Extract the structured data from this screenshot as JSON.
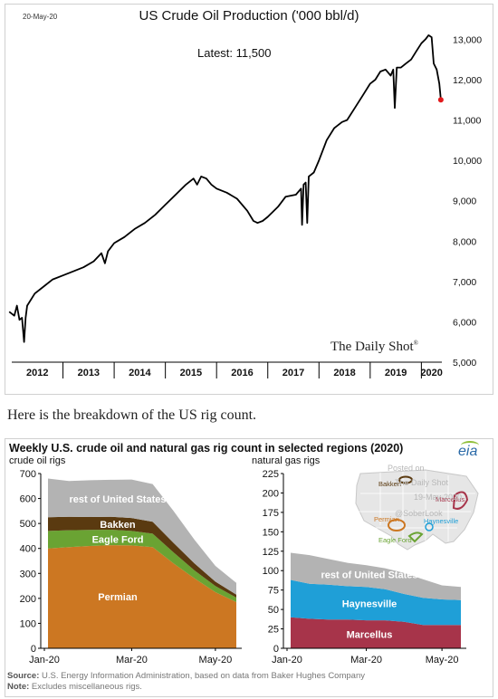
{
  "header": {
    "date": "20-May-20",
    "brand": "The Daily Shot",
    "brand_mark": "®"
  },
  "caption": "Here is the breakdown of the US rig count.",
  "chart_data": [
    {
      "type": "line",
      "title": "US Crude Oil Production  ('000 bbl/d)",
      "annotation": "Latest:  11,500",
      "x_unit": "year",
      "xlim": [
        2012,
        2020.4
      ],
      "ylim": [
        5000,
        13300
      ],
      "yticks": [
        5000,
        6000,
        7000,
        8000,
        9000,
        10000,
        11000,
        12000,
        13000
      ],
      "ytick_labels": [
        "5,000",
        "6,000",
        "7,000",
        "8,000",
        "9,000",
        "10,000",
        "11,000",
        "12,000",
        "13,000"
      ],
      "xtick_labels": [
        "2012",
        "2013",
        "2014",
        "2015",
        "2016",
        "2017",
        "2018",
        "2019",
        "2020"
      ],
      "grid": false,
      "color": "#000000",
      "latest_point": {
        "x": 2020.38,
        "y": 11500,
        "color": "#e31a1c"
      },
      "points": [
        [
          2011.95,
          6250
        ],
        [
          2012.05,
          6150
        ],
        [
          2012.1,
          6400
        ],
        [
          2012.15,
          6050
        ],
        [
          2012.2,
          6100
        ],
        [
          2012.24,
          5500
        ],
        [
          2012.27,
          6100
        ],
        [
          2012.3,
          6400
        ],
        [
          2012.45,
          6700
        ],
        [
          2012.6,
          6850
        ],
        [
          2012.8,
          7050
        ],
        [
          2013.0,
          7150
        ],
        [
          2013.2,
          7250
        ],
        [
          2013.4,
          7350
        ],
        [
          2013.6,
          7500
        ],
        [
          2013.75,
          7700
        ],
        [
          2013.82,
          7450
        ],
        [
          2013.88,
          7750
        ],
        [
          2014.0,
          7950
        ],
        [
          2014.2,
          8100
        ],
        [
          2014.4,
          8300
        ],
        [
          2014.6,
          8450
        ],
        [
          2014.8,
          8650
        ],
        [
          2015.0,
          8900
        ],
        [
          2015.2,
          9150
        ],
        [
          2015.4,
          9400
        ],
        [
          2015.55,
          9550
        ],
        [
          2015.62,
          9400
        ],
        [
          2015.7,
          9600
        ],
        [
          2015.8,
          9550
        ],
        [
          2015.9,
          9400
        ],
        [
          2016.0,
          9300
        ],
        [
          2016.2,
          9200
        ],
        [
          2016.4,
          9050
        ],
        [
          2016.6,
          8750
        ],
        [
          2016.72,
          8500
        ],
        [
          2016.8,
          8450
        ],
        [
          2016.9,
          8500
        ],
        [
          2017.0,
          8600
        ],
        [
          2017.2,
          8850
        ],
        [
          2017.35,
          9100
        ],
        [
          2017.55,
          9150
        ],
        [
          2017.65,
          9300
        ],
        [
          2017.67,
          8400
        ],
        [
          2017.7,
          9400
        ],
        [
          2017.74,
          9450
        ],
        [
          2017.77,
          8450
        ],
        [
          2017.8,
          9600
        ],
        [
          2017.9,
          9700
        ],
        [
          2018.0,
          10000
        ],
        [
          2018.15,
          10500
        ],
        [
          2018.3,
          10800
        ],
        [
          2018.45,
          10950
        ],
        [
          2018.55,
          11000
        ],
        [
          2018.7,
          11300
        ],
        [
          2018.85,
          11600
        ],
        [
          2019.0,
          11900
        ],
        [
          2019.1,
          12000
        ],
        [
          2019.2,
          12200
        ],
        [
          2019.3,
          12250
        ],
        [
          2019.4,
          12100
        ],
        [
          2019.45,
          12250
        ],
        [
          2019.48,
          11300
        ],
        [
          2019.52,
          12300
        ],
        [
          2019.6,
          12300
        ],
        [
          2019.7,
          12400
        ],
        [
          2019.8,
          12500
        ],
        [
          2019.9,
          12700
        ],
        [
          2020.0,
          12900
        ],
        [
          2020.08,
          13000
        ],
        [
          2020.14,
          13100
        ],
        [
          2020.2,
          13050
        ],
        [
          2020.24,
          12400
        ],
        [
          2020.3,
          12250
        ],
        [
          2020.35,
          11900
        ],
        [
          2020.38,
          11500
        ]
      ]
    },
    {
      "type": "area",
      "title": "Weekly U.S. crude oil and natural gas rig count in selected regions (2020)",
      "ylabel": "crude oil rigs",
      "x": [
        "Jan-20",
        "Jan-20",
        "Feb-20",
        "Feb-20",
        "Mar-20",
        "Mar-20",
        "Apr-20",
        "Apr-20",
        "May-20",
        "May-20"
      ],
      "xtick_labels": [
        "Jan-20",
        "Mar-20",
        "May-20"
      ],
      "ylim": [
        0,
        700
      ],
      "yticks": [
        0,
        100,
        200,
        300,
        400,
        500,
        600,
        700
      ],
      "stacked": true,
      "series": [
        {
          "name": "Permian",
          "color": "#cc7722",
          "values": [
            400,
            405,
            410,
            413,
            412,
            405,
            340,
            280,
            225,
            185
          ]
        },
        {
          "name": "Eagle Ford",
          "color": "#6aa333",
          "values": [
            70,
            68,
            64,
            62,
            58,
            54,
            44,
            32,
            24,
            18
          ]
        },
        {
          "name": "Bakken",
          "color": "#5a3a10",
          "values": [
            55,
            54,
            52,
            52,
            52,
            48,
            38,
            28,
            18,
            12
          ]
        },
        {
          "name": "rest of United States",
          "color": "#b3b3b3",
          "values": [
            155,
            143,
            147,
            148,
            154,
            151,
            128,
            95,
            63,
            47
          ]
        }
      ]
    },
    {
      "type": "area",
      "ylabel": "natural gas rigs",
      "x": [
        "Jan-20",
        "Jan-20",
        "Feb-20",
        "Feb-20",
        "Mar-20",
        "Mar-20",
        "Apr-20",
        "Apr-20",
        "May-20",
        "May-20"
      ],
      "xtick_labels": [
        "Jan-20",
        "Mar-20",
        "May-20"
      ],
      "ylim": [
        0,
        225
      ],
      "yticks": [
        0,
        25,
        50,
        75,
        100,
        125,
        150,
        175,
        200,
        225
      ],
      "stacked": true,
      "series": [
        {
          "name": "Marcellus",
          "color": "#a7344a",
          "values": [
            40,
            38,
            37,
            37,
            36,
            36,
            34,
            30,
            30,
            30
          ]
        },
        {
          "name": "Haynesville",
          "color": "#1f9fd7",
          "values": [
            48,
            45,
            45,
            43,
            43,
            40,
            36,
            35,
            33,
            32
          ]
        },
        {
          "name": "rest of United States",
          "color": "#b3b3b3",
          "values": [
            35,
            37,
            33,
            30,
            28,
            27,
            27,
            24,
            18,
            17
          ]
        }
      ]
    }
  ],
  "map_inset": {
    "labels": [
      "Bakken",
      "Marcellus",
      "Permian",
      "Haynesville",
      "Eagle Ford"
    ],
    "watermark": [
      "Posted on",
      "The Daily Shot",
      "19-May-2020",
      "@SoberLook"
    ]
  },
  "eia_logo": "eia",
  "source": {
    "label": "Source:",
    "text": " U.S. Energy Information Administration, based on data from Baker Hughes Company"
  },
  "note": {
    "label": "Note:",
    "text": " Excludes miscellaneous rigs."
  }
}
